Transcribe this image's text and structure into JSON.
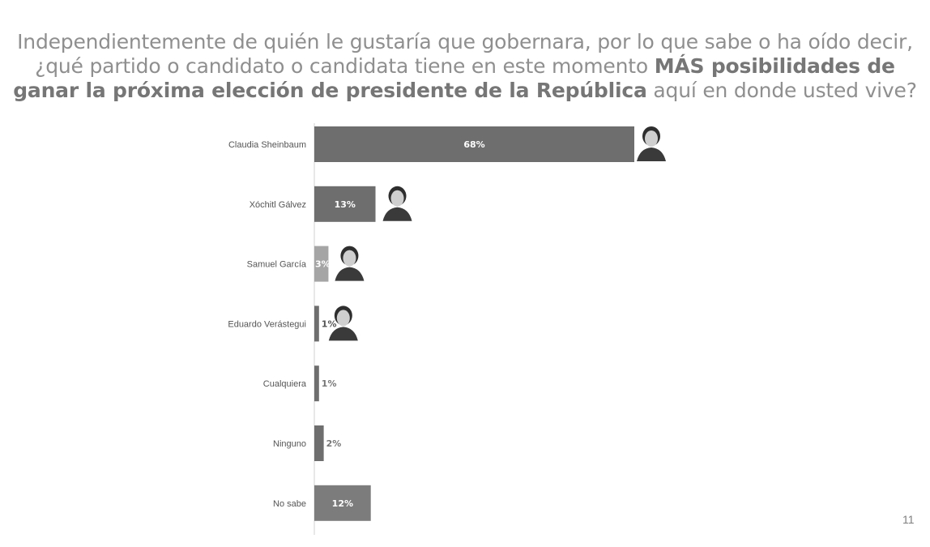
{
  "title": {
    "part1": "Independientemente de quién le gustaría que gobernara, por lo que sabe o ha oído decir, ¿qué partido o candidato o candidata tiene en este momento ",
    "bold1": "MÁS posibilidades de ganar la próxima elección de presidente de la República",
    "part2": " aquí en donde usted vive?"
  },
  "page_number": "11",
  "colors": {
    "dark_bar": "#6e6e6e",
    "medium_bar": "#7c7c7c",
    "light_bar": "#a5a5a5",
    "axis": "#d0d0d0"
  },
  "chart_data": {
    "type": "bar",
    "orientation": "horizontal",
    "title": "Independientemente de quién le gustaría que gobernara, por lo que sabe o ha oído decir, ¿qué partido o candidato o candidata tiene en este momento MÁS posibilidades de ganar la próxima elección de presidente de la República aquí en donde usted vive?",
    "categories": [
      "Claudia Sheinbaum",
      "Xóchitl Gálvez",
      "Samuel García",
      "Eduardo Verástegui",
      "Cualquiera",
      "Ninguno",
      "No sabe"
    ],
    "values": [
      68,
      13,
      3,
      1,
      1,
      2,
      12
    ],
    "value_labels": [
      "68%",
      "13%",
      "3%",
      "1%",
      "1%",
      "2%",
      "12%"
    ],
    "bar_shades": [
      "dark",
      "dark",
      "light",
      "dark",
      "dark",
      "dark",
      "medium"
    ],
    "photos": [
      "candidate-photo",
      "candidate-photo",
      "candidate-photo",
      "candidate-photo",
      null,
      null,
      null
    ],
    "xlim": [
      0,
      68
    ],
    "xlabel": "",
    "ylabel": "",
    "grid": false,
    "legend": "none"
  }
}
